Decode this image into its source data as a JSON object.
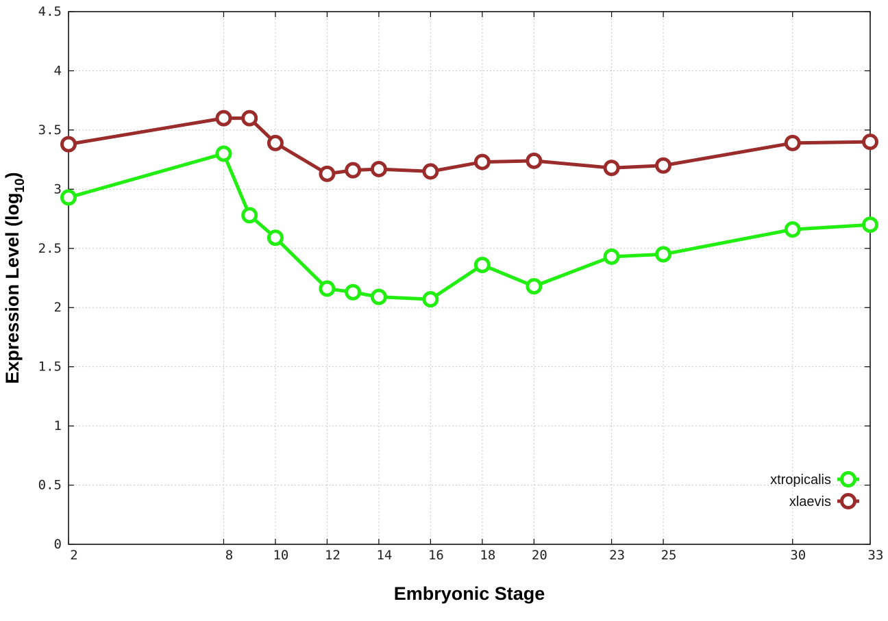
{
  "chart_data": {
    "type": "line",
    "xlabel": "Embryonic Stage",
    "ylabel_main": "Expression Level (log",
    "ylabel_sub": "10",
    "ylabel_close": ")",
    "xlim": [
      2,
      33
    ],
    "ylim": [
      0,
      4.5
    ],
    "x_ticks": [
      2,
      8,
      10,
      12,
      14,
      16,
      18,
      20,
      23,
      25,
      30,
      33
    ],
    "y_ticks": [
      0,
      0.5,
      1,
      1.5,
      2,
      2.5,
      3,
      3.5,
      4,
      4.5
    ],
    "y_tick_labels": [
      "0",
      "0.5",
      "1",
      "1.5",
      "2",
      "2.5",
      "3",
      "3.5",
      "4",
      "4.5"
    ],
    "grid": true,
    "legend_position": "bottom-right",
    "x": [
      2,
      8,
      9,
      10,
      12,
      13,
      14,
      16,
      18,
      20,
      23,
      25,
      30,
      33
    ],
    "series": [
      {
        "name": "xtropicalis",
        "color": "#22ee11",
        "values": [
          2.93,
          3.3,
          2.78,
          2.59,
          2.16,
          2.13,
          2.09,
          2.07,
          2.36,
          2.18,
          2.43,
          2.45,
          2.66,
          2.7
        ]
      },
      {
        "name": "xlaevis",
        "color": "#9b2c2c",
        "values": [
          3.38,
          3.6,
          3.6,
          3.39,
          3.13,
          3.16,
          3.17,
          3.15,
          3.23,
          3.24,
          3.18,
          3.2,
          3.39,
          3.4
        ]
      }
    ]
  }
}
